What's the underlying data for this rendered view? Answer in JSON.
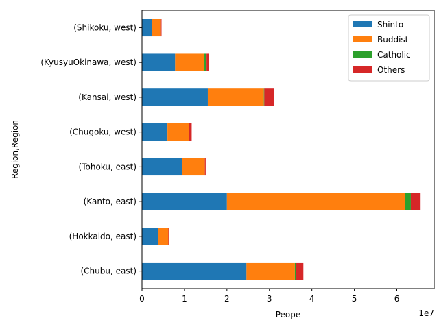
{
  "chart_data": {
    "type": "bar",
    "orientation": "horizontal",
    "stacked": true,
    "title": "",
    "xlabel": "Peope",
    "ylabel": "Region,Region",
    "x_offset_label": "1e7",
    "x_tick_values": [
      0,
      10000000,
      20000000,
      30000000,
      40000000,
      50000000,
      60000000
    ],
    "x_tick_labels": [
      "0",
      "1",
      "2",
      "3",
      "4",
      "5",
      "6"
    ],
    "xlim": [
      0,
      68800000
    ],
    "grid": false,
    "legend_position": "top-right",
    "categories": [
      "(Chubu, east)",
      "(Hokkaido, east)",
      "(Kanto, east)",
      "(Tohoku, east)",
      "(Chugoku, west)",
      "(Kansai, west)",
      "(KyusyuOkinawa, west)",
      "(Shikoku, west)"
    ],
    "series": [
      {
        "name": "Shinto",
        "color": "#1f77b4",
        "values": [
          24600000,
          3800000,
          20000000,
          9500000,
          6000000,
          15500000,
          7800000,
          2300000
        ]
      },
      {
        "name": "Buddist",
        "color": "#ff7f0e",
        "values": [
          11400000,
          2400000,
          42000000,
          5300000,
          5000000,
          13200000,
          6900000,
          2000000
        ]
      },
      {
        "name": "Catholic",
        "color": "#2ca02c",
        "values": [
          200000,
          0,
          1300000,
          0,
          100000,
          100000,
          500000,
          0
        ]
      },
      {
        "name": "Others",
        "color": "#d62728",
        "values": [
          1800000,
          200000,
          2300000,
          200000,
          600000,
          2300000,
          600000,
          300000
        ]
      }
    ]
  }
}
